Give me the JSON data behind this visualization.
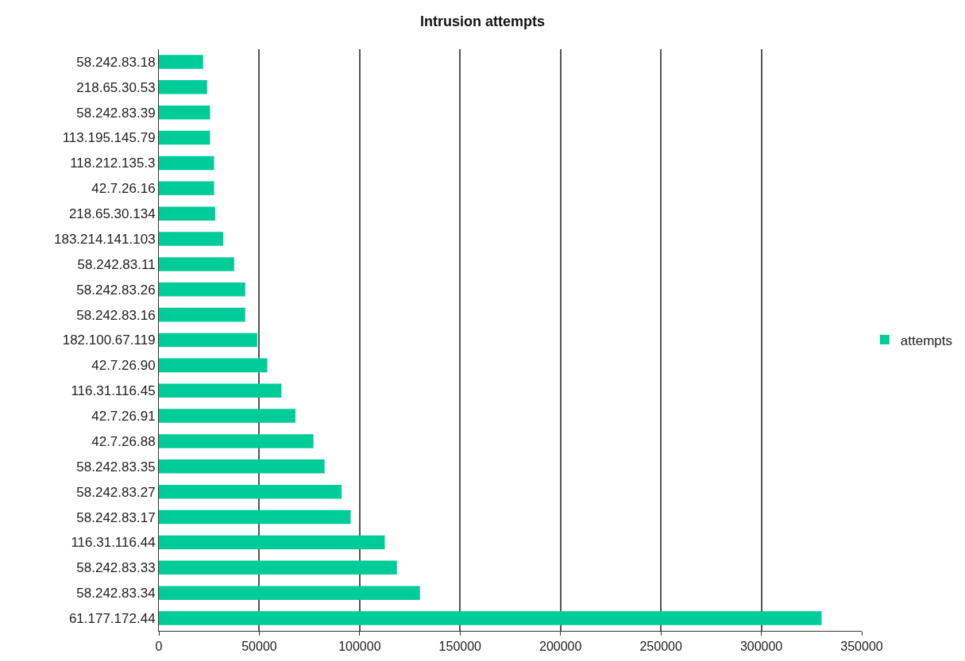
{
  "chart_data": {
    "type": "bar",
    "orientation": "horizontal",
    "title": "Intrusion attempts",
    "categories": [
      "58.242.83.18",
      "218.65.30.53",
      "58.242.83.39",
      "113.195.145.79",
      "118.212.135.3",
      "42.7.26.16",
      "218.65.30.134",
      "183.214.141.103",
      "58.242.83.11",
      "58.242.83.26",
      "58.242.83.16",
      "182.100.67.119",
      "42.7.26.90",
      "116.31.116.45",
      "42.7.26.91",
      "42.7.26.88",
      "58.242.83.35",
      "58.242.83.27",
      "58.242.83.17",
      "116.31.116.44",
      "58.242.83.33",
      "58.242.83.34",
      "61.177.172.44"
    ],
    "series": [
      {
        "name": "attempts",
        "color": "#00cc99",
        "values": [
          22000,
          24000,
          25500,
          25500,
          27500,
          27500,
          28000,
          32000,
          37500,
          43000,
          43000,
          49000,
          54000,
          61000,
          68000,
          77000,
          82500,
          91000,
          95500,
          112500,
          118500,
          130000,
          330000
        ]
      }
    ],
    "xlim": [
      0,
      350000
    ],
    "xticks": [
      0,
      50000,
      100000,
      150000,
      200000,
      250000,
      300000,
      350000
    ],
    "grid": "x",
    "legend": "right"
  }
}
